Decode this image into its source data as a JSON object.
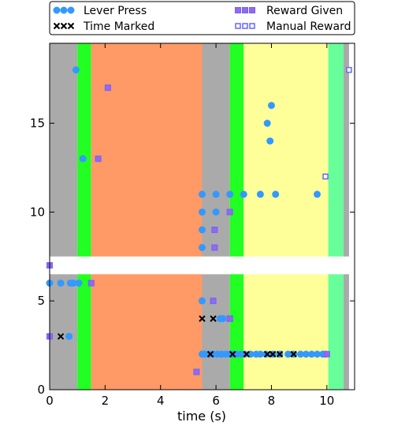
{
  "chart_data": {
    "type": "scatter",
    "xlabel": "time (s)",
    "ylabel": "",
    "xlim": [
      0,
      11
    ],
    "ylim": [
      0,
      19.5
    ],
    "xticks": [
      0,
      2,
      4,
      6,
      8,
      10
    ],
    "yticks": [
      0,
      5,
      10,
      15
    ],
    "grid": false,
    "legend_position": "top",
    "bands": [
      {
        "x0": 0.0,
        "x1": 1.0,
        "color": "#aaaaaa"
      },
      {
        "x0": 1.0,
        "x1": 1.5,
        "color": "#22ff22"
      },
      {
        "x0": 1.5,
        "x1": 5.5,
        "color": "#ff9966"
      },
      {
        "x0": 5.5,
        "x1": 6.5,
        "color": "#aaaaaa"
      },
      {
        "x0": 6.5,
        "x1": 7.0,
        "color": "#22ff22"
      },
      {
        "x0": 7.0,
        "x1": 10.05,
        "color": "#ffff99"
      },
      {
        "x0": 10.05,
        "x1": 10.6,
        "color": "#66ff99"
      },
      {
        "x0": 10.6,
        "x1": 10.8,
        "color": "#aaaaaa"
      }
    ],
    "blank_stripe": {
      "y0": 6.5,
      "y1": 7.5,
      "color": "#ffffff"
    },
    "series": [
      {
        "name": "Lever Press",
        "marker": "circle",
        "color": "#3399ff",
        "points": [
          [
            0.95,
            18
          ],
          [
            1.2,
            13
          ],
          [
            5.5,
            11
          ],
          [
            6.0,
            11
          ],
          [
            6.5,
            11
          ],
          [
            7.0,
            11
          ],
          [
            7.6,
            11
          ],
          [
            8.15,
            11
          ],
          [
            9.65,
            11
          ],
          [
            5.5,
            10
          ],
          [
            6.0,
            10
          ],
          [
            5.5,
            9
          ],
          [
            5.5,
            8
          ],
          [
            7.85,
            15
          ],
          [
            7.95,
            14
          ],
          [
            8.0,
            16
          ],
          [
            0.0,
            6
          ],
          [
            0.4,
            6
          ],
          [
            0.75,
            6
          ],
          [
            0.85,
            6
          ],
          [
            1.05,
            6
          ],
          [
            5.5,
            5
          ],
          [
            6.15,
            4
          ],
          [
            6.25,
            4
          ],
          [
            0.7,
            3
          ],
          [
            5.5,
            2
          ],
          [
            5.6,
            2
          ],
          [
            5.75,
            2
          ],
          [
            5.9,
            2
          ],
          [
            6.05,
            2
          ],
          [
            6.2,
            2
          ],
          [
            6.35,
            2
          ],
          [
            6.5,
            2
          ],
          [
            6.6,
            2
          ],
          [
            6.75,
            2
          ],
          [
            6.9,
            2
          ],
          [
            7.05,
            2
          ],
          [
            7.25,
            2
          ],
          [
            7.45,
            2
          ],
          [
            7.6,
            2
          ],
          [
            7.8,
            2
          ],
          [
            8.05,
            2
          ],
          [
            8.3,
            2
          ],
          [
            8.6,
            2
          ],
          [
            8.8,
            2
          ],
          [
            9.05,
            2
          ],
          [
            9.25,
            2
          ],
          [
            9.45,
            2
          ],
          [
            9.65,
            2
          ],
          [
            9.85,
            2
          ],
          [
            9.95,
            2
          ]
        ]
      },
      {
        "name": "Time Marked",
        "marker": "x",
        "color": "#000000",
        "points": [
          [
            0.4,
            3
          ],
          [
            5.5,
            4
          ],
          [
            5.9,
            4
          ],
          [
            6.5,
            4
          ],
          [
            5.8,
            2
          ],
          [
            6.6,
            2
          ],
          [
            7.1,
            2
          ],
          [
            7.85,
            2
          ],
          [
            8.05,
            2
          ],
          [
            8.3,
            2
          ],
          [
            8.8,
            2
          ]
        ]
      },
      {
        "name": "Reward Given",
        "marker": "square",
        "color": "#9966ee",
        "points": [
          [
            2.1,
            17
          ],
          [
            1.75,
            13
          ],
          [
            6.5,
            10
          ],
          [
            5.95,
            9
          ],
          [
            5.95,
            8
          ],
          [
            0.0,
            7
          ],
          [
            1.5,
            6
          ],
          [
            5.9,
            5
          ],
          [
            6.5,
            4
          ],
          [
            0.0,
            3
          ],
          [
            5.3,
            1
          ],
          [
            10.0,
            2
          ]
        ]
      },
      {
        "name": "Manual Reward",
        "marker": "square-open",
        "color": "#6666ff",
        "points": [
          [
            10.8,
            18
          ],
          [
            9.95,
            12
          ]
        ]
      }
    ]
  }
}
